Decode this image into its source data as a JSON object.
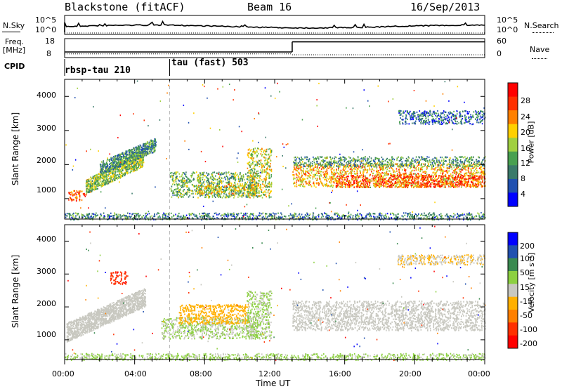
{
  "header": {
    "radar": "Blackstone (fitACF)",
    "beam": "Beam 16",
    "date": "16/Sep/2013"
  },
  "summary": {
    "nsky_label": "N.Sky",
    "nsky_ticks": [
      "10^5",
      "10^0"
    ],
    "nsearch_label": "N.Search",
    "nsearch_ticks": [
      "10^5",
      "10^0"
    ],
    "freq_label_line1": "Freq.",
    "freq_label_line2": "[MHz]",
    "freq_ticks": [
      "18",
      "8"
    ],
    "nave_label": "Nave",
    "nave_ticks": [
      "60",
      "0"
    ],
    "cpid_label": "CPID",
    "cpid_segments": [
      {
        "name": "rbsp-tau 210",
        "start_hour": 0
      },
      {
        "name": "tau (fast) 503",
        "start_hour": 6
      }
    ],
    "freq_mhz": [
      {
        "start_hour": 0,
        "end_hour": 13,
        "value": 10.5
      },
      {
        "start_hour": 13,
        "end_hour": 24,
        "value": 16.5
      }
    ],
    "nave": [
      {
        "start_hour": 0,
        "end_hour": 13,
        "value": 8
      },
      {
        "start_hour": 13,
        "end_hour": 24,
        "value": 5
      }
    ]
  },
  "colors": {
    "power_scale": [
      "#0000ff",
      "#2050b0",
      "#3a7a6a",
      "#48a050",
      "#a0d040",
      "#ffd000",
      "#ff8000",
      "#ff3000",
      "#ff0000"
    ],
    "velocity_scale": [
      "#0000ff",
      "#2050b0",
      "#3a8a50",
      "#8cd040",
      "#c8c8c0",
      "#ffb000",
      "#ff8000",
      "#ff3000",
      "#ff0000"
    ],
    "ground_scatter": "#c8c8c0"
  },
  "chart_data": [
    {
      "type": "heatmap",
      "name": "power",
      "ylabel": "Slant Range [km]",
      "y_ticks": [
        "4000",
        "3000",
        "2000",
        "1000"
      ],
      "ylim": [
        400,
        4500
      ],
      "xlim": [
        0,
        24
      ],
      "colorbar_label": "Power [dB]",
      "colorbar_ticks": [
        "28",
        "24",
        "20",
        "16",
        "12",
        "8",
        "4"
      ],
      "clim": [
        0,
        30
      ],
      "regions": [
        {
          "t0": 0.2,
          "t1": 1.2,
          "r0": 950,
          "r1": 1250,
          "value": 24
        },
        {
          "t0": 1.2,
          "t1": 4.5,
          "r0": 1150,
          "r1": 2400,
          "value": 14,
          "slope": true
        },
        {
          "t0": 2.0,
          "t1": 5.2,
          "r0": 1700,
          "r1": 2800,
          "value": 9,
          "slope": true
        },
        {
          "t0": 6.0,
          "t1": 11.0,
          "r0": 1050,
          "r1": 1800,
          "value": 12
        },
        {
          "t0": 7.5,
          "t1": 11.0,
          "r0": 1150,
          "r1": 1450,
          "value": 18
        },
        {
          "t0": 10.4,
          "t1": 11.8,
          "r0": 1050,
          "r1": 2500,
          "value": 16
        },
        {
          "t0": 13.0,
          "t1": 24.0,
          "r0": 1350,
          "r1": 2050,
          "value": 20
        },
        {
          "t0": 15.5,
          "t1": 24.0,
          "r0": 1350,
          "r1": 1700,
          "value": 26
        },
        {
          "t0": 13.0,
          "t1": 24.0,
          "r0": 1950,
          "r1": 2250,
          "value": 10
        },
        {
          "t0": 19.0,
          "t1": 24.0,
          "r0": 3200,
          "r1": 3600,
          "value": 6
        },
        {
          "t0": 0.0,
          "t1": 24.0,
          "r0": 400,
          "r1": 600,
          "value": 8
        }
      ]
    },
    {
      "type": "heatmap",
      "name": "velocity",
      "ylabel": "Slant Range [km]",
      "y_ticks": [
        "4000",
        "3000",
        "2000",
        "1000"
      ],
      "ylim": [
        400,
        4500
      ],
      "xlim": [
        0,
        24
      ],
      "colorbar_label": "Velocity [m s⁻¹]",
      "colorbar_ticks": [
        "200",
        "100",
        "50",
        "15",
        "-15",
        "-50",
        "-100",
        "-200"
      ],
      "clim": [
        -250,
        250
      ],
      "regions": [
        {
          "t0": 0.1,
          "t1": 4.6,
          "r0": 950,
          "r1": 2600,
          "value": 0,
          "slope": true
        },
        {
          "t0": 2.6,
          "t1": 3.5,
          "r0": 2700,
          "r1": 3100,
          "value": -200
        },
        {
          "t0": 5.5,
          "t1": 11.0,
          "r0": 1050,
          "r1": 1700,
          "value": 30
        },
        {
          "t0": 6.5,
          "t1": 10.5,
          "r0": 1500,
          "r1": 2100,
          "value": -60
        },
        {
          "t0": 10.4,
          "t1": 11.8,
          "r0": 1050,
          "r1": 2500,
          "value": 40
        },
        {
          "t0": 13.0,
          "t1": 24.0,
          "r0": 1300,
          "r1": 2200,
          "value": 0
        },
        {
          "t0": 19.0,
          "t1": 24.0,
          "r0": 3300,
          "r1": 3600,
          "value": -30
        },
        {
          "t0": 0.0,
          "t1": 24.0,
          "r0": 400,
          "r1": 600,
          "value": 40
        }
      ]
    }
  ],
  "xaxis": {
    "ticks": [
      "00:00",
      "04:00",
      "08:00",
      "12:00",
      "16:00",
      "20:00",
      "00:00"
    ],
    "label": "Time UT"
  }
}
